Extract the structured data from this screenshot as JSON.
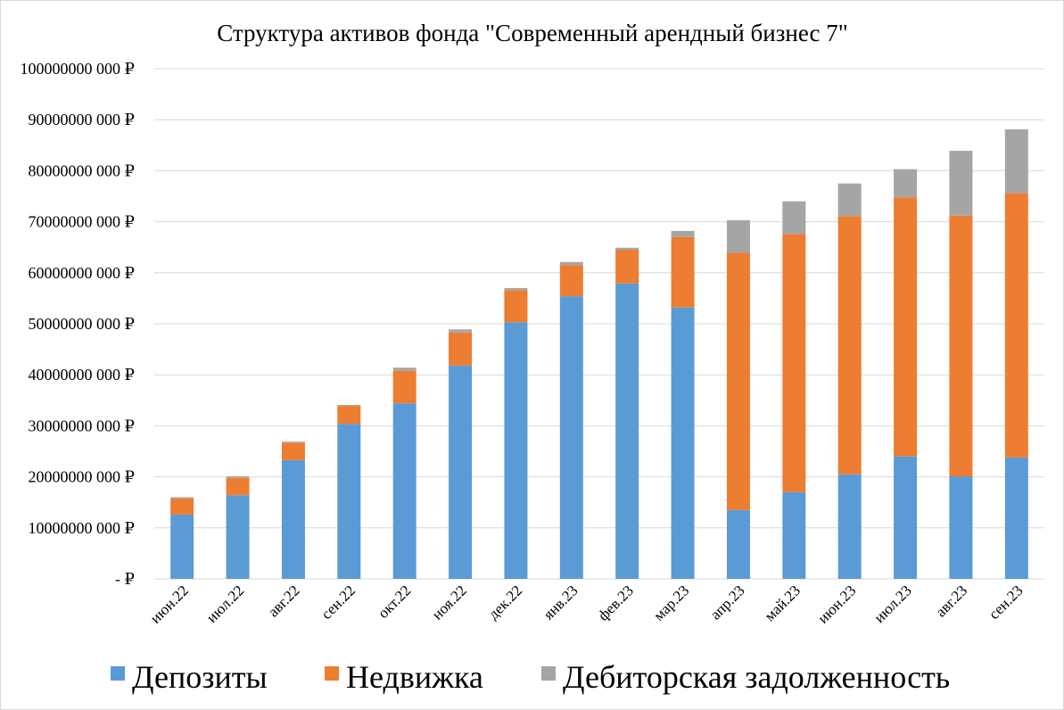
{
  "chart_data": {
    "type": "bar",
    "stacked": true,
    "title": "Структура  активов фонда \"Современный арендный бизнес 7\"",
    "categories": [
      "июн.22",
      "июл.22",
      "авг.22",
      "сен.22",
      "окт.22",
      "ноя.22",
      "дек.22",
      "янв.23",
      "фев.23",
      "мар.23",
      "апр.23",
      "май.23",
      "июн.23",
      "июл.23",
      "авг.23",
      "сен.23"
    ],
    "series": [
      {
        "name": "Депозиты",
        "color": "#5b9bd5",
        "values": [
          12600000,
          16400000,
          23300000,
          30400000,
          34400000,
          41800000,
          50300000,
          55400000,
          57900000,
          53200000,
          13500000,
          17000000,
          20500000,
          24000000,
          20100000,
          23800000
        ]
      },
      {
        "name": "Недвижка",
        "color": "#ed7d31",
        "values": [
          3200000,
          3400000,
          3400000,
          3500000,
          6400000,
          6500000,
          6300000,
          6100000,
          6600000,
          13800000,
          50400000,
          50600000,
          50600000,
          50800000,
          51100000,
          51800000
        ]
      },
      {
        "name": "Дебиторская задолженность",
        "color": "#a5a5a5",
        "values": [
          200000,
          300000,
          200000,
          200000,
          600000,
          600000,
          400000,
          600000,
          400000,
          1200000,
          6400000,
          6400000,
          6400000,
          5500000,
          12700000,
          12500000
        ]
      }
    ],
    "ylim": [
      0,
      100000000
    ],
    "y_ticks": [
      0,
      10000000,
      20000000,
      30000000,
      40000000,
      50000000,
      60000000,
      70000000,
      80000000,
      90000000,
      100000000
    ],
    "y_tick_labels": [
      "-  ₽",
      "10000000 000 ₽",
      "20000000 000 ₽",
      "30000000 000 ₽",
      "40000000 000 ₽",
      "50000000 000 ₽",
      "60000000 000 ₽",
      "70000000 000 ₽",
      "80000000 000 ₽",
      "90000000 000 ₽",
      "100000000 000 ₽"
    ],
    "grid": true,
    "legend_position": "bottom",
    "gridline_color": "#d9d9d9"
  }
}
